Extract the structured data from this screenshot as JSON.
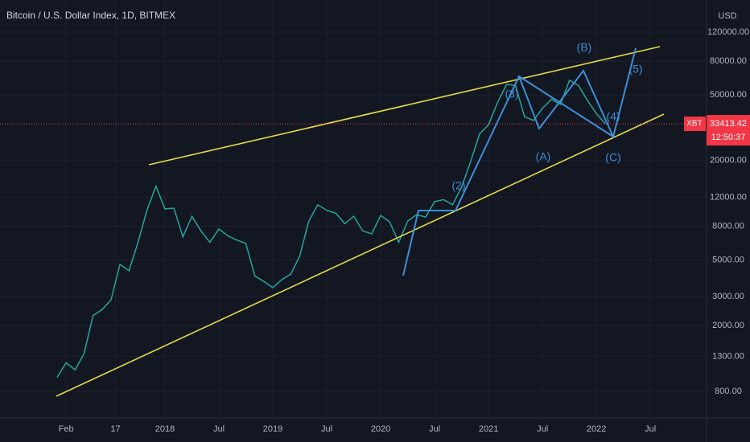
{
  "chart_data": {
    "type": "line",
    "title": "Bitcoin / U.S. Dollar Index, 1D, BITMEX",
    "currency": "USD",
    "log_scale": true,
    "grid": true,
    "x": [
      0,
      1,
      2,
      3,
      4,
      5,
      6,
      7,
      8,
      9,
      10,
      11,
      12,
      13,
      14,
      15,
      16,
      17,
      18,
      19,
      20,
      21,
      22,
      23,
      24,
      25,
      26,
      27,
      28,
      29,
      30,
      31,
      32,
      33,
      34,
      35,
      36,
      37,
      38,
      39,
      40,
      41,
      42,
      43,
      44,
      45,
      46,
      47,
      48,
      49,
      50,
      51,
      52,
      53,
      54,
      55,
      56,
      57,
      58,
      59,
      60,
      61
    ],
    "series": [
      {
        "name": "XBT",
        "color": "#26a69a",
        "values": [
          970,
          1190,
          1080,
          1350,
          2300,
          2500,
          2870,
          4700,
          4300,
          6400,
          10000,
          14000,
          10200,
          10300,
          6900,
          9200,
          7500,
          6400,
          7700,
          7000,
          6600,
          6300,
          4000,
          3700,
          3400,
          3800,
          4100,
          5300,
          8600,
          10800,
          10000,
          9600,
          8300,
          9200,
          7500,
          7200,
          9300,
          8500,
          6400,
          8600,
          9400,
          9100,
          11300,
          11600,
          10800,
          13800,
          19700,
          29000,
          33000,
          45000,
          58000,
          57000,
          37000,
          35000,
          41500,
          47000,
          43800,
          61300,
          57000,
          46300,
          38500,
          33413
        ]
      }
    ],
    "xlim": [
      -6.35,
      72.25
    ],
    "xticks": [
      {
        "value": 1,
        "label": "Feb"
      },
      {
        "value": 6.5,
        "label": "17"
      },
      {
        "value": 12,
        "label": "2018"
      },
      {
        "value": 18,
        "label": "Jul"
      },
      {
        "value": 24,
        "label": "2019"
      },
      {
        "value": 30,
        "label": "Jul"
      },
      {
        "value": 36,
        "label": "2020"
      },
      {
        "value": 42,
        "label": "Jul"
      },
      {
        "value": 48,
        "label": "2021"
      },
      {
        "value": 54,
        "label": "Jul"
      },
      {
        "value": 60,
        "label": "2022"
      },
      {
        "value": 66,
        "label": "Jul"
      }
    ],
    "ylim": [
      552,
      188000
    ],
    "yticks": [
      {
        "value": 800,
        "label": "800.00"
      },
      {
        "value": 1300,
        "label": "1300.00"
      },
      {
        "value": 2000,
        "label": "2000.00"
      },
      {
        "value": 3000,
        "label": "3000.00"
      },
      {
        "value": 5000,
        "label": "5000.00"
      },
      {
        "value": 8000,
        "label": "8000.00"
      },
      {
        "value": 12000,
        "label": "12000.00"
      },
      {
        "value": 20000,
        "label": "20000.00"
      },
      {
        "value": 50000,
        "label": "50000.00"
      },
      {
        "value": 80000,
        "label": "80000.00"
      },
      {
        "value": 120000,
        "label": "120000.00"
      }
    ],
    "current_price": 33413.42,
    "countdown": "12:50:37",
    "annotations": [
      "(2)",
      "(3)",
      "(4)",
      "(5)",
      "(A)",
      "(B)",
      "(C)"
    ]
  }
}
